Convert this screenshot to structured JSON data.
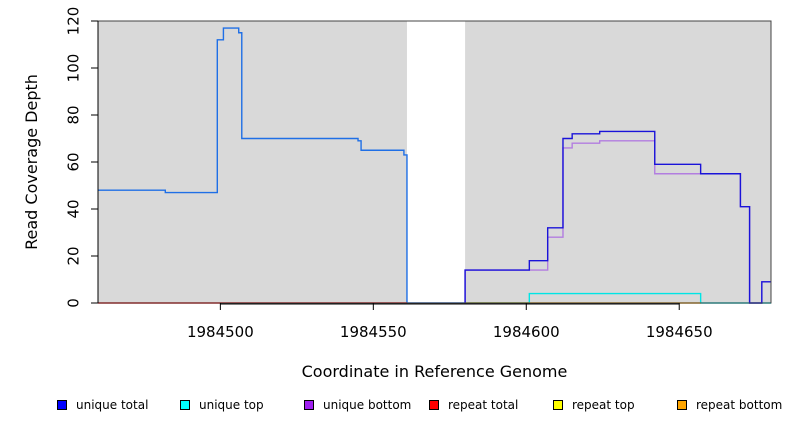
{
  "chart_data": {
    "type": "line",
    "title": "",
    "xlabel": "Coordinate in Reference Genome",
    "ylabel": "Read Coverage Depth",
    "xlim": [
      1984460,
      1984680
    ],
    "ylim": [
      0,
      120
    ],
    "x_ticks": [
      {
        "value": 1984500,
        "label": "1984500"
      },
      {
        "value": 1984550,
        "label": "1984550"
      },
      {
        "value": 1984600,
        "label": "1984600"
      },
      {
        "value": 1984650,
        "label": "1984650"
      }
    ],
    "y_ticks": [
      {
        "value": 0,
        "label": "0"
      },
      {
        "value": 20,
        "label": "20"
      },
      {
        "value": 40,
        "label": "40"
      },
      {
        "value": 60,
        "label": "60"
      },
      {
        "value": 80,
        "label": "80"
      },
      {
        "value": 100,
        "label": "100"
      },
      {
        "value": 120,
        "label": "120"
      }
    ],
    "grid": false,
    "background": {
      "shaded_regions": [
        {
          "x": [
            1984460,
            1984561
          ],
          "color": "#d9d9d9"
        },
        {
          "x": [
            1984580,
            1984680
          ],
          "color": "#d9d9d9"
        }
      ],
      "unshaded_color": "#ffffff"
    },
    "series": [
      {
        "name": "",
        "color": "#1f6fe6",
        "style": "step",
        "points": [
          [
            1984460,
            48
          ],
          [
            1984482,
            48
          ],
          [
            1984482,
            47
          ],
          [
            1984499,
            47
          ],
          [
            1984499,
            112
          ],
          [
            1984501,
            112
          ],
          [
            1984501,
            117
          ],
          [
            1984506,
            117
          ],
          [
            1984506,
            115
          ],
          [
            1984507,
            115
          ],
          [
            1984507,
            70
          ],
          [
            1984545,
            70
          ],
          [
            1984545,
            69
          ],
          [
            1984546,
            69
          ],
          [
            1984546,
            65
          ],
          [
            1984560,
            65
          ],
          [
            1984560,
            63
          ],
          [
            1984561,
            63
          ],
          [
            1984561,
            0
          ],
          [
            1984580,
            0
          ]
        ]
      },
      {
        "name": "unique top",
        "color": "#00e5e5",
        "style": "step",
        "points": [
          [
            1984580,
            0
          ],
          [
            1984601,
            0
          ],
          [
            1984601,
            4
          ],
          [
            1984657,
            4
          ],
          [
            1984657,
            0
          ],
          [
            1984680,
            0
          ]
        ]
      },
      {
        "name": "repeat total",
        "color": "#ff0000",
        "style": "step",
        "points": [
          [
            1984460,
            0
          ],
          [
            1984561,
            0
          ]
        ]
      },
      {
        "name": "repeat bottom",
        "color": "#ffa500",
        "style": "step",
        "points": [
          [
            1984580,
            0
          ],
          [
            1984657,
            0
          ]
        ]
      },
      {
        "name": "unique bottom",
        "color": "#b27de0",
        "style": "step",
        "points": [
          [
            1984580,
            0
          ],
          [
            1984580,
            14
          ],
          [
            1984607,
            14
          ],
          [
            1984607,
            28
          ],
          [
            1984612,
            28
          ],
          [
            1984612,
            66
          ],
          [
            1984615,
            66
          ],
          [
            1984615,
            68
          ],
          [
            1984624,
            68
          ],
          [
            1984624,
            69
          ],
          [
            1984642,
            69
          ],
          [
            1984642,
            55
          ],
          [
            1984657,
            55
          ],
          [
            1984657,
            55
          ],
          [
            1984670,
            55
          ],
          [
            1984670,
            41
          ],
          [
            1984673,
            41
          ],
          [
            1984673,
            0
          ],
          [
            1984677,
            0
          ],
          [
            1984677,
            9
          ],
          [
            1984680,
            9
          ]
        ]
      },
      {
        "name": "unique total",
        "color": "#1a13d9",
        "style": "step",
        "points": [
          [
            1984580,
            0
          ],
          [
            1984580,
            14
          ],
          [
            1984601,
            14
          ],
          [
            1984601,
            18
          ],
          [
            1984607,
            18
          ],
          [
            1984607,
            32
          ],
          [
            1984612,
            32
          ],
          [
            1984612,
            70
          ],
          [
            1984615,
            70
          ],
          [
            1984615,
            72
          ],
          [
            1984624,
            72
          ],
          [
            1984624,
            73
          ],
          [
            1984642,
            73
          ],
          [
            1984642,
            59
          ],
          [
            1984657,
            59
          ],
          [
            1984657,
            55
          ],
          [
            1984670,
            55
          ],
          [
            1984670,
            41
          ],
          [
            1984673,
            41
          ],
          [
            1984673,
            0
          ],
          [
            1984677,
            0
          ],
          [
            1984677,
            9
          ],
          [
            1984680,
            9
          ]
        ]
      }
    ],
    "legend": {
      "placement": "bottom",
      "items": [
        {
          "label": "unique total",
          "color": "#0000ff"
        },
        {
          "label": "unique top",
          "color": "#00ffff"
        },
        {
          "label": "unique bottom",
          "color": "#a020f0"
        },
        {
          "label": "repeat total",
          "color": "#ff0000"
        },
        {
          "label": "repeat top",
          "color": "#ffff00"
        },
        {
          "label": "repeat bottom",
          "color": "#ffa500"
        }
      ]
    }
  }
}
